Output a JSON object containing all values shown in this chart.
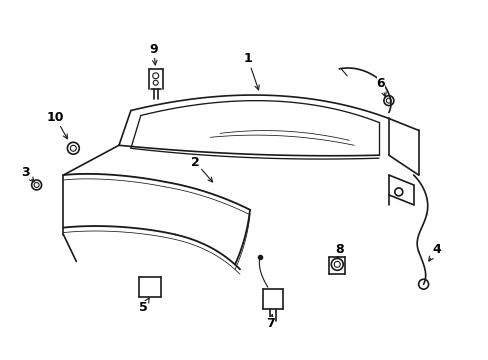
{
  "title": "",
  "bg_color": "#ffffff",
  "line_color": "#1a1a1a",
  "label_color": "#000000",
  "fig_width": 4.89,
  "fig_height": 3.6,
  "dpi": 100
}
